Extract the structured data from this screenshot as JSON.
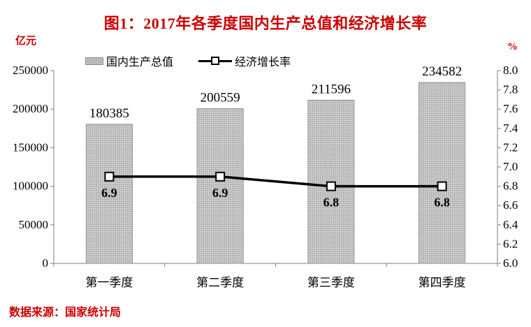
{
  "source_note": "数据来源：国家统计局",
  "colors": {
    "accent_red": "#cc0000",
    "bar_fill": "#b3b3b3",
    "bar_dot": "#ececec",
    "bar_border": "#8f8f8f",
    "line_color": "#000000",
    "marker_fill": "#ffffff",
    "axis_color": "#7f7f7f",
    "text_color": "#000000"
  },
  "chart_data": {
    "type": "bar",
    "title": "图1：2017年各季度国内生产总值和经济增长率",
    "categories": [
      "第一季度",
      "第二季度",
      "第三季度",
      "第四季度"
    ],
    "series": [
      {
        "name": "国内生产总值",
        "type": "bar",
        "axis": "left",
        "unit": "亿元",
        "values": [
          180385,
          200559,
          211596,
          234582
        ],
        "data_labels": [
          "180385",
          "200559",
          "211596",
          "234582"
        ]
      },
      {
        "name": "经济增长率",
        "type": "line",
        "axis": "right",
        "unit": "%",
        "values": [
          6.9,
          6.9,
          6.8,
          6.8
        ],
        "data_labels": [
          "6.9",
          "6.9",
          "6.8",
          "6.8"
        ]
      }
    ],
    "left_axis": {
      "unit": "亿元",
      "min": 0,
      "max": 250000,
      "step": 50000,
      "ticks": [
        "0",
        "50000",
        "100000",
        "150000",
        "200000",
        "250000"
      ]
    },
    "right_axis": {
      "unit": "%",
      "min": 6.0,
      "max": 8.0,
      "step": 0.2,
      "ticks": [
        "6.0",
        "6.2",
        "6.4",
        "6.6",
        "6.8",
        "7.0",
        "7.2",
        "7.4",
        "7.6",
        "7.8",
        "8.0"
      ]
    },
    "grid": false,
    "legend_position": "top"
  }
}
